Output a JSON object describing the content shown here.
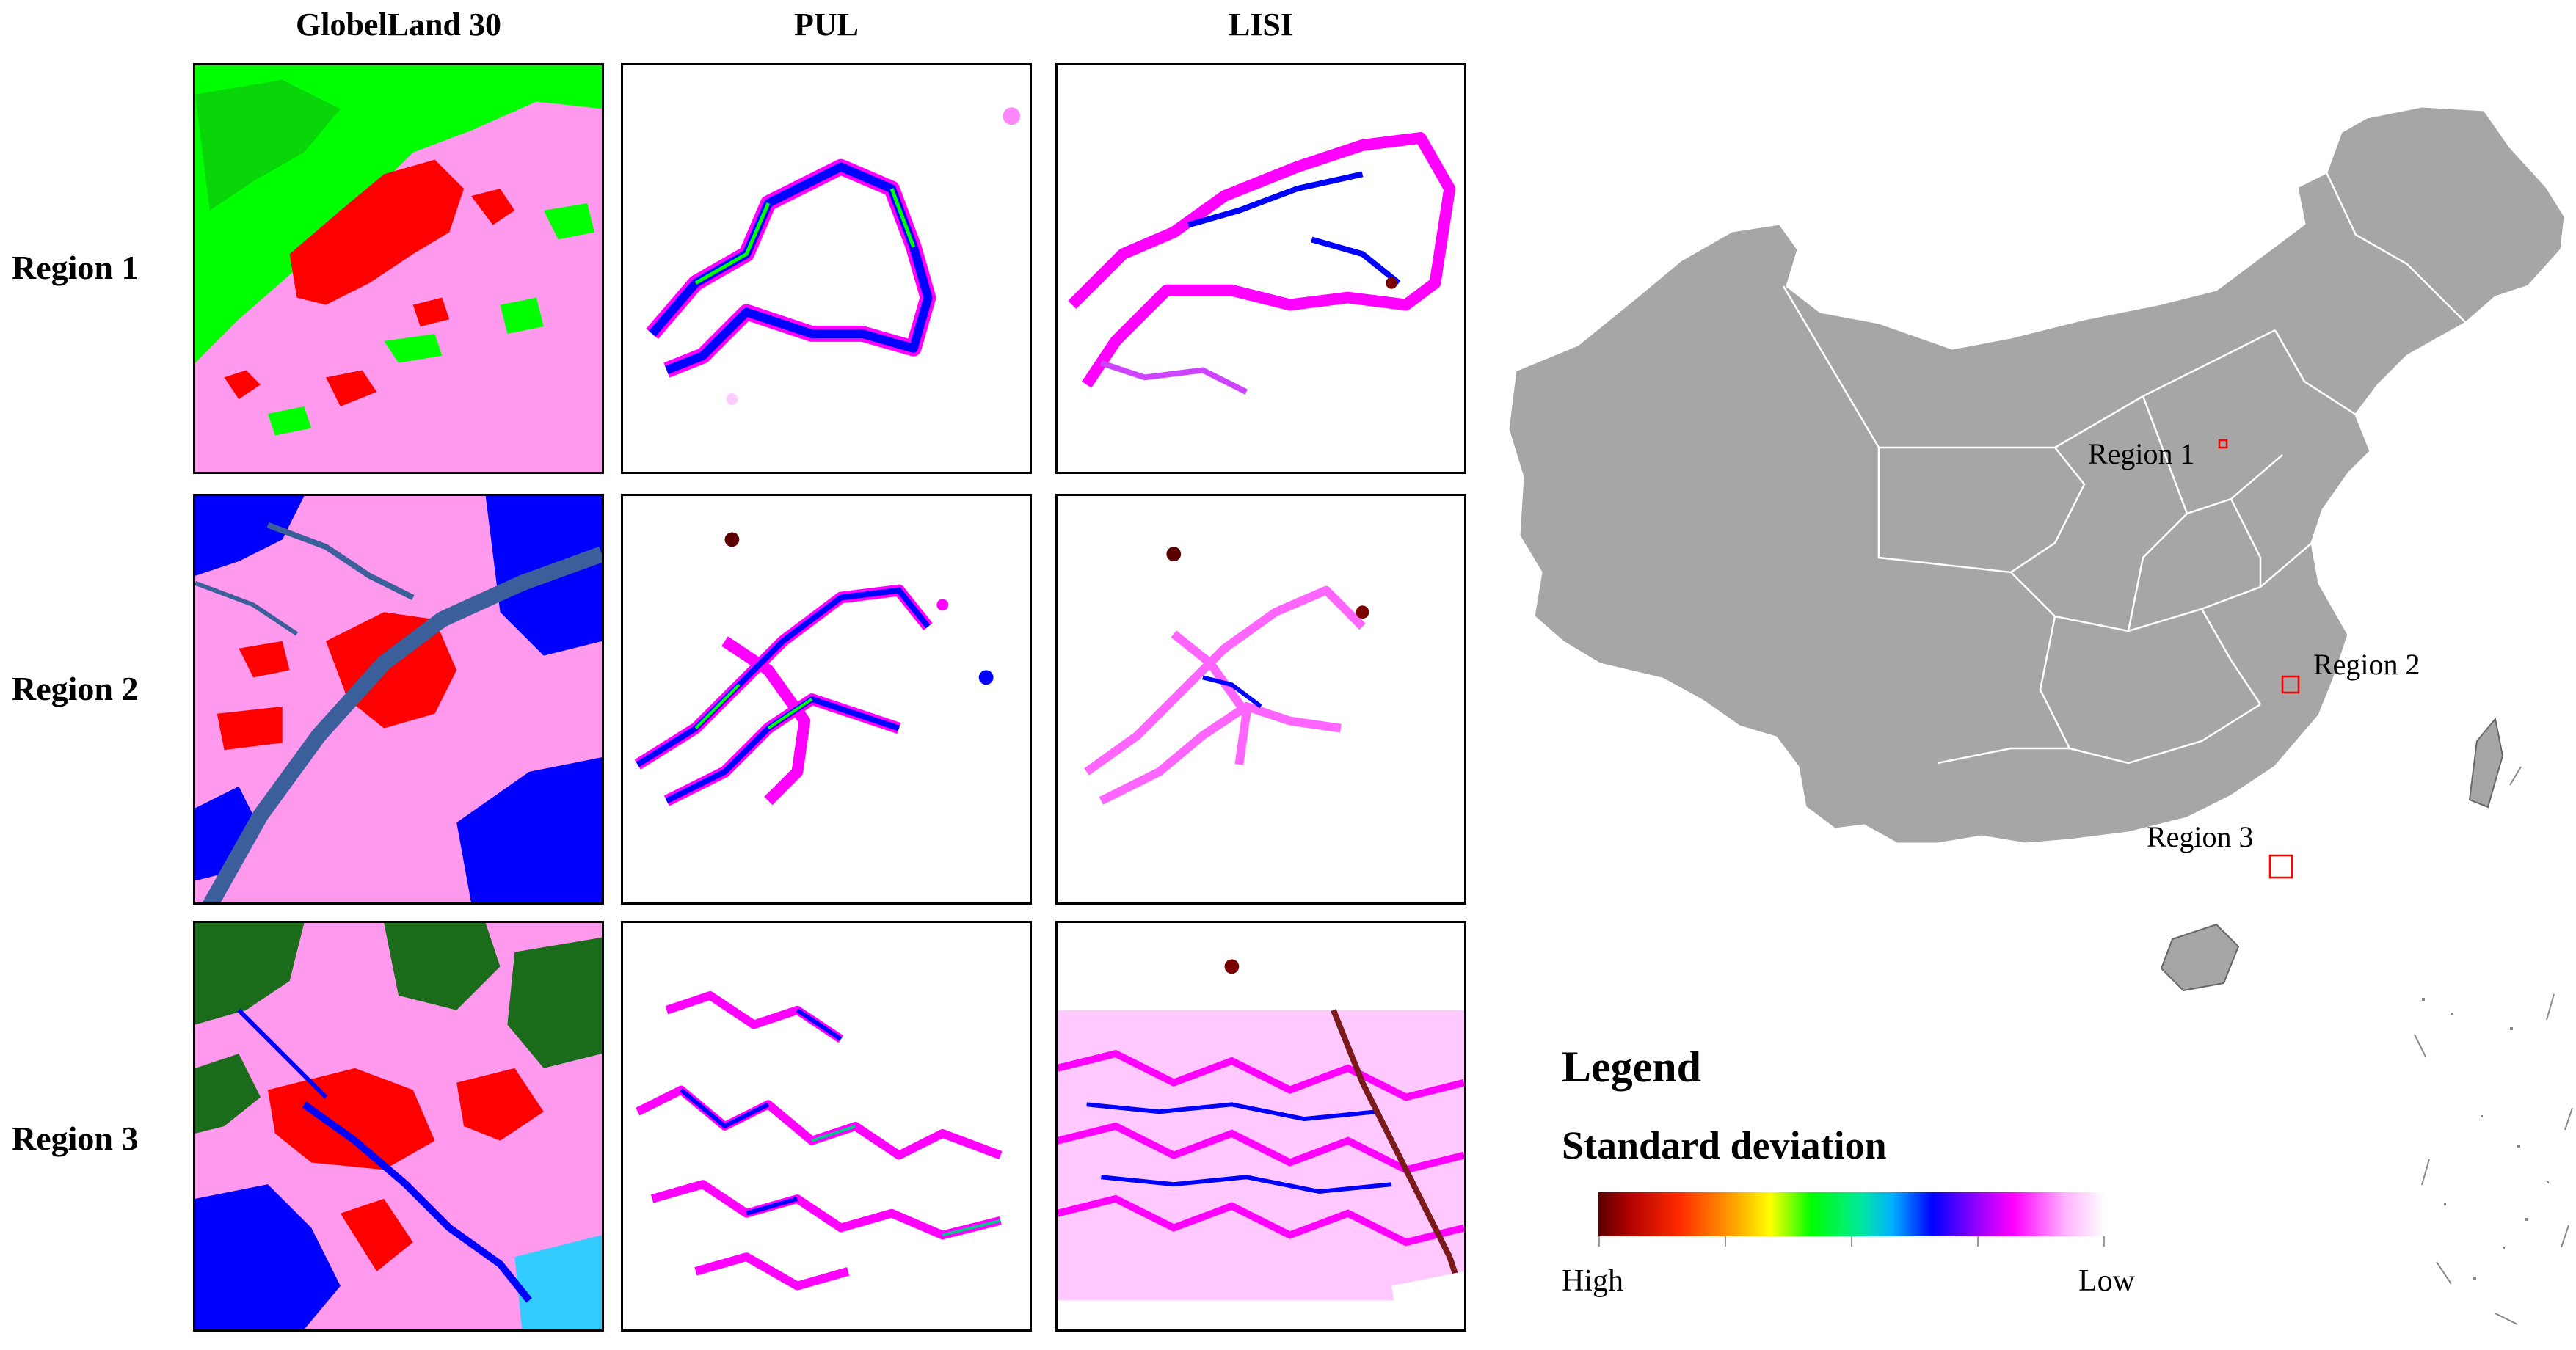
{
  "columns": [
    "GlobelLand 30",
    "PUL",
    "LISI"
  ],
  "rows": [
    "Region 1",
    "Region 2",
    "Region 3"
  ],
  "map_labels": {
    "region1": "Region 1",
    "region2": "Region 2",
    "region3": "Region 3"
  },
  "legend": {
    "title": "Legend",
    "subtitle": "Standard deviation",
    "high": "High",
    "low": "Low"
  },
  "colors": {
    "artificial": "#ff0000",
    "grassland": "#ff99ee",
    "forest": "#00ff00",
    "dark_forest": "#1a6b1a",
    "water": "#0000ff",
    "sea": "#33ccff",
    "river": "#3a5f9a",
    "map_fill": "#a6a6a6",
    "map_border": "#ffffff",
    "region_box": "#ff0000"
  }
}
